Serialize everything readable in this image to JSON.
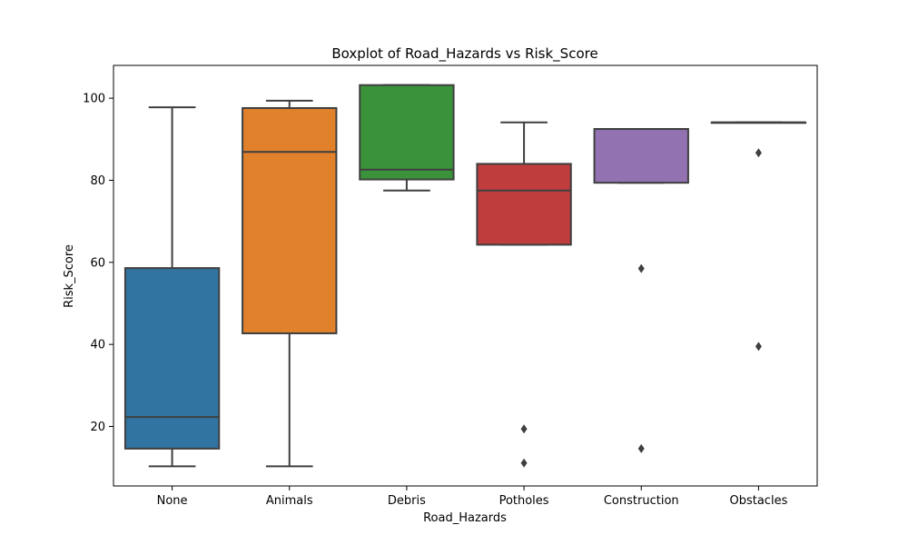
{
  "chart_data": {
    "type": "boxplot",
    "title": "Boxplot of Road_Hazards vs Risk_Score",
    "xlabel": "Road_Hazards",
    "ylabel": "Risk_Score",
    "ylim": [
      5.5,
      108
    ],
    "yticks": [
      20,
      40,
      60,
      80,
      100
    ],
    "grid": false,
    "categories": [
      "None",
      "Animals",
      "Debris",
      "Potholes",
      "Construction",
      "Obstacles"
    ],
    "boxes": [
      {
        "category": "None",
        "whisker_low": 10.3,
        "q1": 14.6,
        "median": 22.3,
        "q3": 58.6,
        "whisker_high": 97.8,
        "outliers": [],
        "color": "#3274a1"
      },
      {
        "category": "Animals",
        "whisker_low": 10.3,
        "q1": 42.7,
        "median": 86.9,
        "q3": 97.6,
        "whisker_high": 99.4,
        "outliers": [],
        "color": "#e1812c"
      },
      {
        "category": "Debris",
        "whisker_low": 77.5,
        "q1": 80.2,
        "median": 82.6,
        "q3": 103.2,
        "whisker_high": 103.2,
        "outliers": [],
        "color": "#3a923a"
      },
      {
        "category": "Potholes",
        "whisker_low": 64.3,
        "q1": 64.3,
        "median": 77.5,
        "q3": 84.0,
        "whisker_high": 94.1,
        "outliers": [
          19.4,
          11.1
        ],
        "color": "#c03d3e"
      },
      {
        "category": "Construction",
        "whisker_low": 79.4,
        "q1": 79.4,
        "median": 92.5,
        "q3": 92.5,
        "whisker_high": 92.5,
        "outliers": [
          58.5,
          14.6
        ],
        "color": "#9372b2"
      },
      {
        "category": "Obstacles",
        "whisker_low": 94.1,
        "q1": 94.1,
        "median": 94.1,
        "q3": 94.1,
        "whisker_high": 94.1,
        "outliers": [
          86.7,
          39.5
        ],
        "color": "#845b53"
      }
    ]
  }
}
